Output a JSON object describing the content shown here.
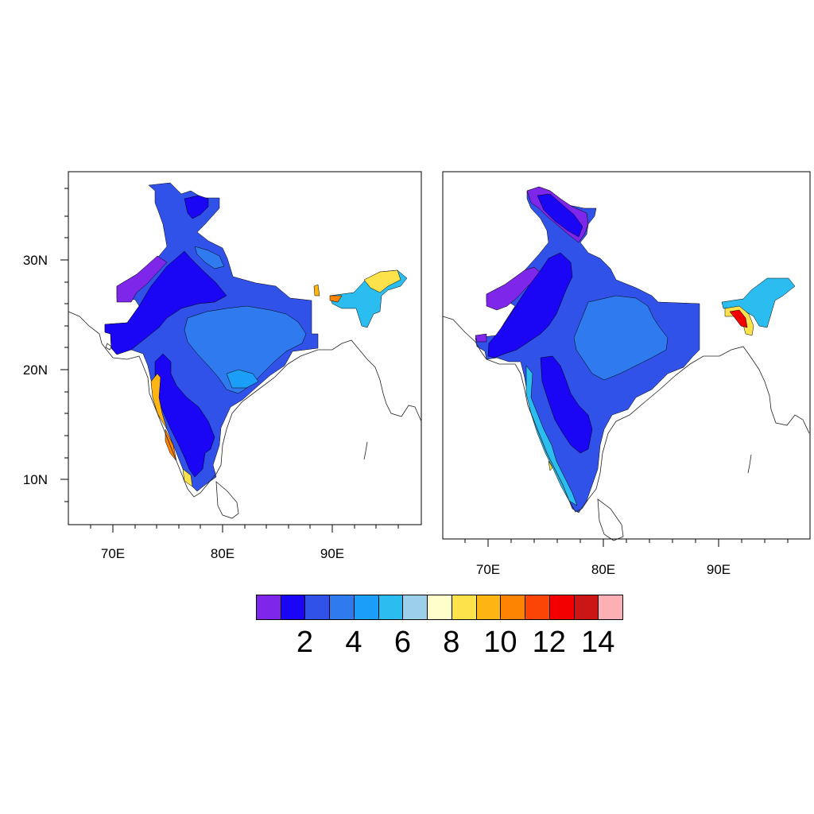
{
  "left_panel": {
    "lat_labels": [
      "30N",
      "20N",
      "10N"
    ],
    "lon_labels": [
      "70E",
      "80E",
      "90E"
    ]
  },
  "right_panel": {
    "lon_labels": [
      "70E",
      "80E",
      "90E"
    ]
  },
  "colorbar": {
    "colors": [
      "#7f26eb",
      "#1a05f5",
      "#3152e8",
      "#2e7aee",
      "#1a9ef7",
      "#2bbcf0",
      "#9ccfea",
      "#ffffcc",
      "#fde24b",
      "#fcb513",
      "#fd8402",
      "#fa4506",
      "#f20000",
      "#cc1515",
      "#fcb0b3"
    ],
    "labels": [
      "2",
      "4",
      "6",
      "8",
      "10",
      "12",
      "14"
    ]
  }
}
